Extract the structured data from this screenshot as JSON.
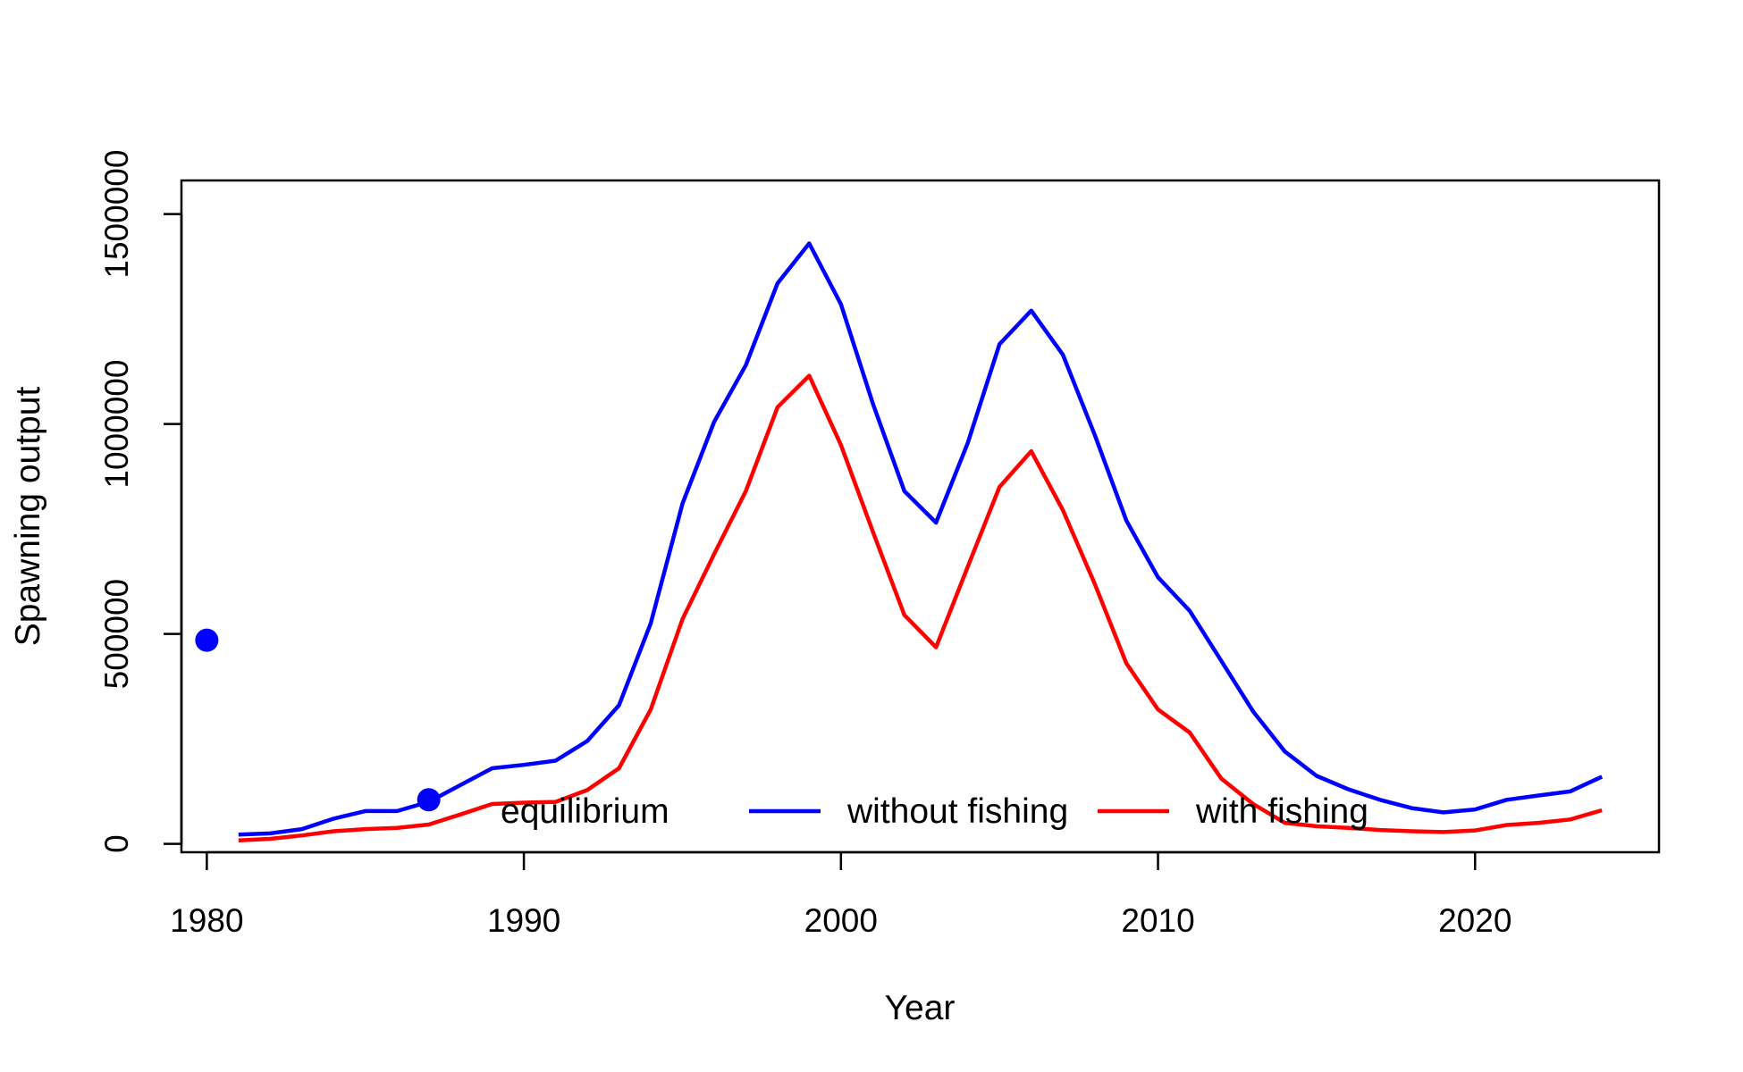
{
  "chart_data": {
    "type": "line",
    "title": "",
    "xlabel": "Year",
    "ylabel": "Spawning output",
    "xlim": [
      1979.2,
      2025.8
    ],
    "ylim": [
      -20000,
      1580000
    ],
    "x_ticks": [
      1980,
      1990,
      2000,
      2010,
      2020
    ],
    "y_ticks": [
      0,
      500000,
      1000000,
      1500000
    ],
    "x_tick_labels": [
      "1980",
      "1990",
      "2000",
      "2010",
      "2020"
    ],
    "y_tick_labels": [
      "0",
      "500000",
      "1000000",
      "1500000"
    ],
    "grid": false,
    "legend": {
      "position": "bottom",
      "entries": [
        {
          "label": "equilibrium",
          "marker": "point",
          "color": "#0000FF"
        },
        {
          "label": "without fishing",
          "marker": "line",
          "color": "#0000FF"
        },
        {
          "label": "with fishing",
          "marker": "line",
          "color": "#FF0000"
        }
      ]
    },
    "points": [
      {
        "name": "equilibrium",
        "color": "#0000FF",
        "values": [
          [
            1980,
            485000
          ],
          [
            1987,
            105000
          ]
        ]
      }
    ],
    "x": [
      1981,
      1982,
      1983,
      1984,
      1985,
      1986,
      1987,
      1988,
      1989,
      1990,
      1991,
      1992,
      1993,
      1994,
      1995,
      1996,
      1997,
      1998,
      1999,
      2000,
      2001,
      2002,
      2003,
      2004,
      2005,
      2006,
      2007,
      2008,
      2009,
      2010,
      2011,
      2012,
      2013,
      2014,
      2015,
      2016,
      2017,
      2018,
      2019,
      2020,
      2021,
      2022,
      2023,
      2024
    ],
    "series": [
      {
        "name": "without fishing",
        "color": "#0000FF",
        "values": [
          22000,
          25000,
          35000,
          60000,
          78000,
          78000,
          100000,
          140000,
          180000,
          188000,
          198000,
          245000,
          330000,
          525000,
          810000,
          1005000,
          1140000,
          1335000,
          1430000,
          1285000,
          1050000,
          840000,
          765000,
          955000,
          1190000,
          1270000,
          1165000,
          975000,
          770000,
          635000,
          555000,
          435000,
          315000,
          220000,
          162000,
          130000,
          105000,
          85000,
          75000,
          82000,
          105000,
          115000,
          125000,
          160000
        ]
      },
      {
        "name": "with fishing",
        "color": "#FF0000",
        "values": [
          8000,
          12000,
          20000,
          30000,
          35000,
          38000,
          46000,
          70000,
          95000,
          98000,
          100000,
          128000,
          180000,
          320000,
          535000,
          690000,
          840000,
          1040000,
          1115000,
          950000,
          745000,
          545000,
          468000,
          660000,
          850000,
          935000,
          795000,
          620000,
          430000,
          320000,
          265000,
          155000,
          95000,
          50000,
          42000,
          38000,
          33000,
          30000,
          28000,
          32000,
          45000,
          50000,
          58000,
          80000
        ]
      }
    ]
  }
}
